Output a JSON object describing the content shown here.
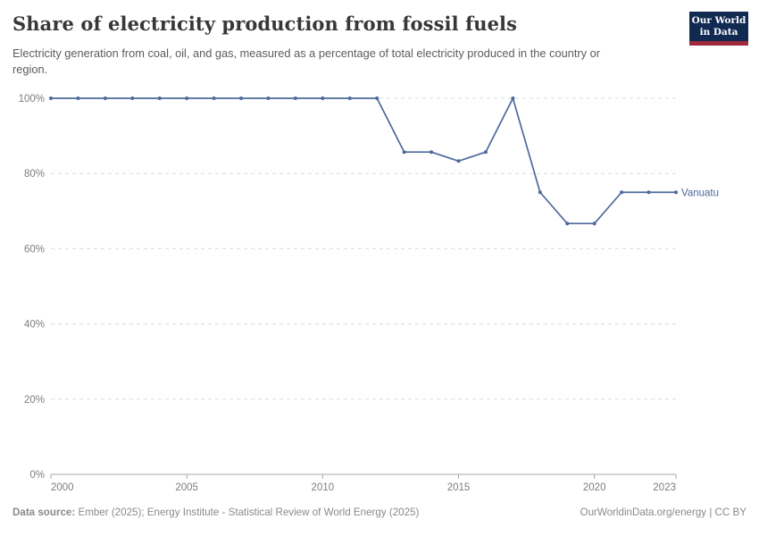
{
  "header": {
    "title": "Share of electricity production from fossil fuels",
    "subtitle": "Electricity generation from coal, oil, and gas, measured as a percentage of total electricity produced in the country or region.",
    "logo": {
      "line1": "Our World",
      "line2": "in Data",
      "bg_color": "#112a52",
      "bar_color": "#9e2a3c"
    }
  },
  "footer": {
    "source_label": "Data source:",
    "source_text": " Ember (2025); Energy Institute - Statistical Review of World Energy (2025)",
    "right_text": "OurWorldinData.org/energy | CC BY"
  },
  "chart_data": {
    "type": "line",
    "title": "Share of electricity production from fossil fuels",
    "xlabel": "",
    "ylabel": "",
    "xlim": [
      2000,
      2023
    ],
    "ylim": [
      0,
      100
    ],
    "x_ticks": [
      2000,
      2005,
      2010,
      2015,
      2020,
      2023
    ],
    "y_ticks": [
      0,
      20,
      40,
      60,
      80,
      100
    ],
    "y_tick_suffix": "%",
    "grid": "horizontal-dashed",
    "legend_position": "end-of-line",
    "colors": {
      "gridline": "#dcdcdc",
      "axis": "#a8a8a8",
      "tick_label": "#7d7d7d"
    },
    "series": [
      {
        "name": "Vanuatu",
        "color": "#4c6a9c",
        "x": [
          2000,
          2001,
          2002,
          2003,
          2004,
          2005,
          2006,
          2007,
          2008,
          2009,
          2010,
          2011,
          2012,
          2013,
          2014,
          2015,
          2016,
          2017,
          2018,
          2019,
          2020,
          2021,
          2022,
          2023
        ],
        "values": [
          100,
          100,
          100,
          100,
          100,
          100,
          100,
          100,
          100,
          100,
          100,
          100,
          100,
          85.7,
          85.7,
          83.3,
          85.7,
          100,
          75,
          66.7,
          66.7,
          75,
          75,
          75
        ]
      }
    ]
  }
}
